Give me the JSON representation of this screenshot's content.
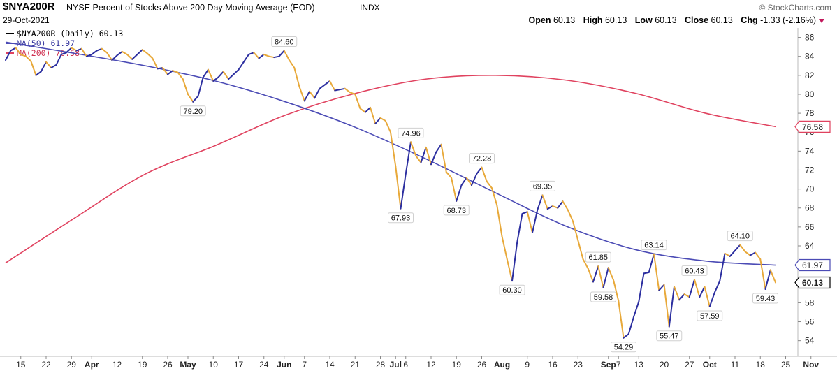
{
  "header": {
    "symbol": "$NYA200R",
    "description": "NYSE Percent of Stocks Above 200 Day Moving Average (EOD)",
    "exchange": "INDX",
    "date": "29-Oct-2021",
    "brand": "© StockCharts.com",
    "open_label": "Open",
    "open": "60.13",
    "high_label": "High",
    "high": "60.13",
    "low_label": "Low",
    "low": "60.13",
    "close_label": "Close",
    "close": "60.13",
    "chg_label": "Chg",
    "chg": "-1.33 (-2.16%)"
  },
  "colors": {
    "price_up": "#2c2fa0",
    "price_down": "#e8a93a",
    "ma50": "#4b4bb5",
    "ma200": "#e0425f"
  },
  "chart_data": {
    "type": "line",
    "ylim": [
      52.5,
      87
    ],
    "yticks": [
      54,
      56,
      58,
      60,
      62,
      64,
      66,
      68,
      70,
      72,
      74,
      76,
      78,
      80,
      82,
      84,
      86
    ],
    "xlim": [
      0,
      152
    ],
    "xticks": [
      {
        "label": "15",
        "i": 3
      },
      {
        "label": "22",
        "i": 8
      },
      {
        "label": "29",
        "i": 13
      },
      {
        "label": "Apr",
        "i": 17
      },
      {
        "label": "12",
        "i": 22
      },
      {
        "label": "19",
        "i": 27
      },
      {
        "label": "26",
        "i": 32
      },
      {
        "label": "May",
        "i": 36
      },
      {
        "label": "10",
        "i": 41
      },
      {
        "label": "17",
        "i": 46
      },
      {
        "label": "24",
        "i": 51
      },
      {
        "label": "Jun",
        "i": 55
      },
      {
        "label": "7",
        "i": 59
      },
      {
        "label": "14",
        "i": 64
      },
      {
        "label": "21",
        "i": 69
      },
      {
        "label": "28",
        "i": 74
      },
      {
        "label": "Jul",
        "i": 77
      },
      {
        "label": "6",
        "i": 79
      },
      {
        "label": "12",
        "i": 84
      },
      {
        "label": "19",
        "i": 89
      },
      {
        "label": "26",
        "i": 94
      },
      {
        "label": "Aug",
        "i": 98
      },
      {
        "label": "9",
        "i": 103
      },
      {
        "label": "16",
        "i": 108
      },
      {
        "label": "23",
        "i": 113
      },
      {
        "label": "Sep",
        "i": 119
      },
      {
        "label": "7",
        "i": 121
      },
      {
        "label": "13",
        "i": 125
      },
      {
        "label": "20",
        "i": 130
      },
      {
        "label": "27",
        "i": 135
      },
      {
        "label": "Oct",
        "i": 139
      },
      {
        "label": "11",
        "i": 144
      },
      {
        "label": "18",
        "i": 149
      },
      {
        "label": "25",
        "i": 154
      },
      {
        "label": "Nov",
        "i": 159
      }
    ],
    "series": [
      {
        "name": "$NYA200R (Daily) 60.13",
        "values": [
          83.6,
          84.6,
          84.9,
          84.2,
          84.0,
          83.5,
          82.0,
          82.4,
          83.4,
          82.8,
          83.1,
          84.2,
          84.4,
          84.9,
          84.6,
          84.8,
          84.0,
          84.2,
          84.6,
          84.8,
          84.4,
          83.6,
          84.1,
          84.5,
          84.2,
          83.7,
          84.2,
          84.7,
          84.3,
          83.8,
          82.7,
          82.8,
          82.1,
          82.5,
          82.3,
          81.6,
          80.0,
          79.2,
          79.8,
          81.8,
          82.6,
          81.4,
          81.8,
          82.4,
          81.6,
          82.1,
          82.6,
          83.4,
          84.2,
          84.4,
          83.8,
          84.2,
          84.0,
          83.9,
          84.0,
          84.6,
          83.6,
          82.8,
          80.8,
          79.3,
          80.3,
          79.6,
          80.6,
          81.0,
          81.4,
          80.4,
          80.5,
          80.6,
          80.2,
          80.0,
          78.5,
          78.1,
          78.6,
          76.9,
          77.5,
          77.2,
          76.0,
          72.4,
          67.93,
          71.6,
          74.96,
          73.5,
          72.8,
          74.4,
          72.6,
          73.9,
          74.7,
          71.8,
          71.2,
          68.73,
          70.4,
          71.2,
          70.4,
          71.6,
          72.28,
          70.8,
          70.1,
          68.3,
          65.0,
          62.6,
          60.3,
          64.4,
          67.4,
          67.6,
          65.4,
          67.8,
          69.35,
          67.9,
          68.2,
          68.0,
          68.7,
          67.8,
          66.6,
          64.6,
          62.6,
          61.6,
          60.2,
          61.85,
          59.58,
          61.7,
          60.4,
          58.2,
          54.29,
          54.7,
          56.5,
          58.1,
          61.1,
          61.2,
          63.14,
          59.3,
          59.9,
          55.47,
          59.7,
          58.3,
          58.9,
          58.6,
          60.43,
          58.6,
          59.7,
          57.59,
          59.1,
          60.3,
          63.2,
          62.9,
          63.5,
          64.1,
          63.4,
          63.0,
          63.3,
          62.6,
          59.43,
          61.46,
          60.13
        ]
      },
      {
        "name": "MA(50) 61.97",
        "values": [
          85.5,
          84.3,
          83.0,
          81.4,
          79.2,
          76.5,
          73.2,
          69.6,
          66.1,
          63.6,
          62.4,
          61.97
        ]
      },
      {
        "name": "MA(200) 76.58",
        "values": [
          62.2,
          67.0,
          71.6,
          74.6,
          77.8,
          80.1,
          81.6,
          82.0,
          81.5,
          80.1,
          78.0,
          76.58
        ]
      }
    ],
    "annotations": [
      {
        "text": "84.60",
        "i": 55,
        "v": 84.6,
        "pos": "above"
      },
      {
        "text": "79.20",
        "i": 37,
        "v": 79.2,
        "pos": "below"
      },
      {
        "text": "74.96",
        "i": 80,
        "v": 74.96,
        "pos": "above"
      },
      {
        "text": "67.93",
        "i": 78,
        "v": 67.93,
        "pos": "below"
      },
      {
        "text": "72.28",
        "i": 94,
        "v": 72.28,
        "pos": "above"
      },
      {
        "text": "68.73",
        "i": 89,
        "v": 68.73,
        "pos": "below"
      },
      {
        "text": "69.35",
        "i": 106,
        "v": 69.35,
        "pos": "above"
      },
      {
        "text": "60.30",
        "i": 100,
        "v": 60.3,
        "pos": "below"
      },
      {
        "text": "61.85",
        "i": 117,
        "v": 61.85,
        "pos": "above"
      },
      {
        "text": "59.58",
        "i": 118,
        "v": 59.58,
        "pos": "below"
      },
      {
        "text": "54.29",
        "i": 122,
        "v": 54.29,
        "pos": "below"
      },
      {
        "text": "63.14",
        "i": 128,
        "v": 63.14,
        "pos": "above"
      },
      {
        "text": "55.47",
        "i": 131,
        "v": 55.47,
        "pos": "below"
      },
      {
        "text": "60.43",
        "i": 136,
        "v": 60.43,
        "pos": "above"
      },
      {
        "text": "57.59",
        "i": 139,
        "v": 57.59,
        "pos": "below"
      },
      {
        "text": "64.10",
        "i": 145,
        "v": 64.1,
        "pos": "above"
      },
      {
        "text": "59.43",
        "i": 150,
        "v": 59.43,
        "pos": "below"
      }
    ],
    "last_values": [
      {
        "text": "76.58",
        "v": 76.58,
        "color": "#e0425f"
      },
      {
        "text": "61.97",
        "v": 61.97,
        "color": "#4b4bb5"
      },
      {
        "text": "60.13",
        "v": 60.13,
        "color": "#000000"
      }
    ],
    "legend_position": "top-left",
    "grid": false
  }
}
